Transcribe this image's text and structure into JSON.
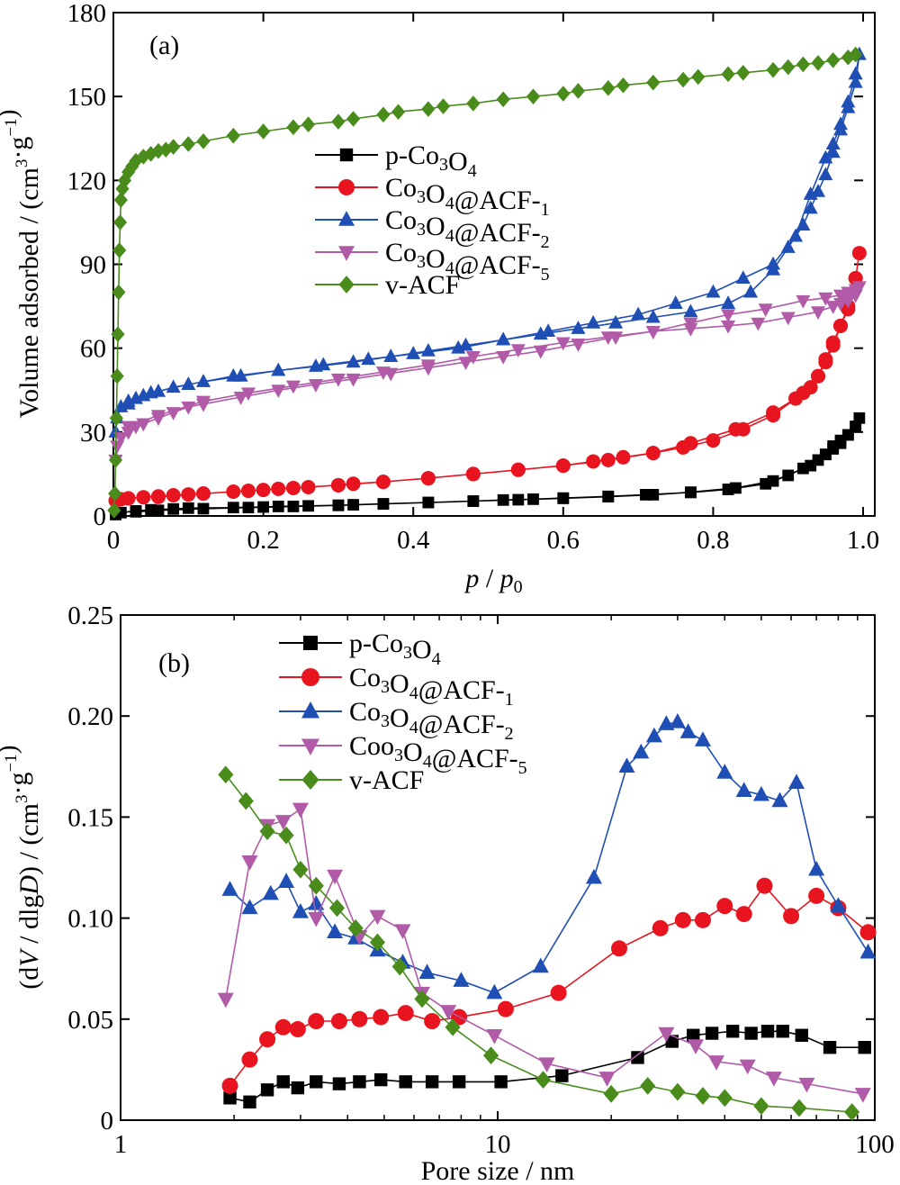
{
  "chart_data": [
    {
      "panel_label": "(a)",
      "type": "line",
      "xlabel": "p / p0",
      "xlabel_parts": [
        "p",
        " / ",
        "p",
        "0"
      ],
      "ylabel": "Volume adsorbed / (cm3·g−1)",
      "xlim": [
        0,
        1.0
      ],
      "ylim": [
        0,
        180
      ],
      "x_ticks": [
        0,
        0.2,
        0.4,
        0.6,
        0.8,
        1.0
      ],
      "x_tick_labels": [
        "0",
        "0.2",
        "0.4",
        "0.6",
        "0.8",
        "1.0"
      ],
      "y_ticks": [
        0,
        30,
        60,
        90,
        120,
        150,
        180
      ],
      "y_tick_labels": [
        "0",
        "30",
        "60",
        "90",
        "120",
        "150",
        "180"
      ],
      "legend_position": "upper-center",
      "series": [
        {
          "name": "p-Co3O4",
          "color": "#000000",
          "marker": "square",
          "x": [
            0.003,
            0.01,
            0.03,
            0.05,
            0.08,
            0.1,
            0.16,
            0.2,
            0.22,
            0.26,
            0.3,
            0.32,
            0.36,
            0.42,
            0.48,
            0.52,
            0.56,
            0.6,
            0.66,
            0.71,
            0.77,
            0.82,
            0.87,
            0.9,
            0.92,
            0.94,
            0.95,
            0.96,
            0.97,
            0.98,
            0.99,
            0.995,
            0.99,
            0.98,
            0.97,
            0.96,
            0.95,
            0.93,
            0.88,
            0.83,
            0.77,
            0.72,
            0.66,
            0.6,
            0.54,
            0.48,
            0.42,
            0.36,
            0.3,
            0.24,
            0.18,
            0.12,
            0.06,
            0.03
          ],
          "y": [
            0.5,
            1.2,
            1.8,
            2.2,
            2.5,
            2.8,
            3.0,
            3.2,
            3.4,
            3.6,
            3.8,
            4.0,
            4.3,
            4.8,
            5.3,
            5.7,
            6.0,
            6.4,
            7.0,
            7.6,
            8.4,
            9.5,
            11.5,
            14.5,
            17,
            20,
            22,
            24,
            26,
            29,
            32,
            35,
            32,
            29,
            27,
            25,
            22,
            18,
            12.5,
            10,
            8.5,
            7.6,
            6.9,
            6.3,
            5.8,
            5.3,
            4.8,
            4.3,
            3.8,
            3.4,
            3.0,
            2.6,
            2.0,
            1.5
          ]
        },
        {
          "name": "Co3O4@ACF-1",
          "color": "#e8141f",
          "marker": "circle",
          "x": [
            0.003,
            0.01,
            0.02,
            0.04,
            0.06,
            0.08,
            0.1,
            0.12,
            0.16,
            0.2,
            0.22,
            0.26,
            0.3,
            0.32,
            0.36,
            0.42,
            0.48,
            0.54,
            0.6,
            0.64,
            0.68,
            0.72,
            0.76,
            0.8,
            0.84,
            0.88,
            0.92,
            0.94,
            0.95,
            0.96,
            0.97,
            0.98,
            0.99,
            0.995,
            0.99,
            0.98,
            0.97,
            0.96,
            0.95,
            0.94,
            0.93,
            0.91,
            0.88,
            0.83,
            0.77,
            0.72,
            0.66,
            0.6,
            0.54,
            0.48,
            0.42,
            0.36,
            0.3,
            0.24,
            0.18,
            0.12,
            0.06
          ],
          "y": [
            5.5,
            6.0,
            6.3,
            6.7,
            7.0,
            7.4,
            7.7,
            8.0,
            8.7,
            9.3,
            9.7,
            10.3,
            11,
            11.5,
            12.2,
            13.5,
            15,
            16.5,
            18,
            19.5,
            21,
            22.5,
            24.5,
            27,
            31,
            36,
            44,
            50,
            56,
            62,
            68,
            74,
            85,
            94,
            85,
            75,
            68,
            61,
            55,
            50,
            46,
            42,
            37,
            31,
            26,
            22.5,
            20,
            18,
            16.5,
            15,
            13.5,
            12.2,
            11,
            10,
            9,
            8,
            6.8
          ]
        },
        {
          "name": "Co3O4@ACF-2",
          "color": "#1f4eb4",
          "marker": "triangle-up",
          "x": [
            0.003,
            0.005,
            0.01,
            0.02,
            0.03,
            0.04,
            0.06,
            0.08,
            0.1,
            0.12,
            0.17,
            0.22,
            0.27,
            0.32,
            0.37,
            0.42,
            0.47,
            0.52,
            0.57,
            0.62,
            0.67,
            0.72,
            0.77,
            0.82,
            0.85,
            0.88,
            0.9,
            0.92,
            0.93,
            0.94,
            0.95,
            0.96,
            0.97,
            0.98,
            0.99,
            0.995,
            0.99,
            0.98,
            0.97,
            0.96,
            0.95,
            0.93,
            0.91,
            0.88,
            0.84,
            0.8,
            0.75,
            0.7,
            0.64,
            0.58,
            0.52,
            0.46,
            0.4,
            0.34,
            0.28,
            0.22,
            0.16,
            0.1,
            0.05,
            0.02
          ],
          "y": [
            30,
            35,
            39,
            41,
            42,
            43,
            44.5,
            46,
            47,
            48,
            50,
            52,
            53.5,
            55,
            57,
            59,
            61,
            63,
            65,
            67,
            69,
            71,
            73,
            76,
            80,
            88,
            96,
            104,
            110,
            116,
            122,
            130,
            138,
            146,
            155,
            165,
            158,
            148,
            140,
            133,
            128,
            115,
            100,
            90,
            85,
            80,
            76,
            72,
            69,
            66,
            63,
            60,
            58,
            56,
            54,
            52,
            50,
            47,
            44,
            40
          ]
        },
        {
          "name": "Co3O4@ACF-5",
          "color": "#b05aa8",
          "marker": "triangle-down",
          "x": [
            0.003,
            0.005,
            0.01,
            0.02,
            0.03,
            0.04,
            0.06,
            0.08,
            0.1,
            0.12,
            0.17,
            0.22,
            0.27,
            0.32,
            0.37,
            0.42,
            0.47,
            0.52,
            0.57,
            0.62,
            0.67,
            0.72,
            0.77,
            0.82,
            0.87,
            0.92,
            0.95,
            0.97,
            0.98,
            0.99,
            0.995,
            0.99,
            0.98,
            0.97,
            0.96,
            0.94,
            0.9,
            0.86,
            0.82,
            0.77,
            0.72,
            0.66,
            0.6,
            0.54,
            0.48,
            0.42,
            0.36,
            0.3,
            0.24,
            0.18,
            0.12,
            0.06,
            0.02
          ],
          "y": [
            20,
            25,
            28,
            30,
            32,
            33,
            35,
            37,
            39,
            40,
            42.5,
            45,
            47,
            49,
            51,
            53,
            55,
            57,
            59,
            61.5,
            64,
            66,
            69,
            72,
            74,
            77,
            78,
            79,
            80,
            81,
            82,
            79,
            77,
            76,
            75,
            73,
            71,
            69,
            68,
            67,
            66,
            64,
            62,
            59.5,
            57,
            54,
            51.5,
            49,
            46.5,
            44,
            41,
            36,
            32
          ]
        },
        {
          "name": "v-ACF",
          "color": "#4a8c1c",
          "marker": "diamond",
          "x": [
            0.001,
            0.002,
            0.003,
            0.004,
            0.005,
            0.006,
            0.007,
            0.008,
            0.009,
            0.01,
            0.012,
            0.015,
            0.02,
            0.025,
            0.03,
            0.04,
            0.05,
            0.06,
            0.07,
            0.08,
            0.1,
            0.12,
            0.16,
            0.2,
            0.24,
            0.26,
            0.3,
            0.32,
            0.36,
            0.38,
            0.42,
            0.44,
            0.48,
            0.52,
            0.56,
            0.6,
            0.62,
            0.66,
            0.68,
            0.72,
            0.76,
            0.78,
            0.82,
            0.84,
            0.88,
            0.9,
            0.92,
            0.94,
            0.96,
            0.98,
            0.99
          ],
          "y": [
            2,
            8,
            20,
            35,
            50,
            65,
            80,
            95,
            105,
            113,
            117,
            120,
            123,
            125,
            127,
            128.5,
            129.5,
            130.5,
            131,
            132,
            133,
            134,
            136,
            137.5,
            139,
            140,
            141,
            142,
            143.5,
            144.5,
            145.5,
            146.5,
            147.5,
            149,
            150,
            151,
            152,
            153,
            154,
            155,
            156,
            157,
            158,
            158.5,
            159.5,
            160.5,
            161.5,
            162,
            163,
            164,
            165
          ]
        }
      ]
    },
    {
      "panel_label": "(b)",
      "type": "line",
      "xlabel": "Pore size / nm",
      "ylabel": "(dV / dlgD) / (cm3·g−1)",
      "x_scale": "log",
      "xlim": [
        1,
        100
      ],
      "ylim": [
        0,
        0.25
      ],
      "x_ticks": [
        1,
        10,
        100
      ],
      "x_tick_labels": [
        "1",
        "10",
        "100"
      ],
      "y_ticks": [
        0,
        0.05,
        0.1,
        0.15,
        0.2,
        0.25
      ],
      "y_tick_labels": [
        "0",
        "0.05",
        "0.10",
        "0.15",
        "0.20",
        "0.25"
      ],
      "legend_position": "upper-center",
      "series": [
        {
          "name": "p-Co3O4",
          "color": "#000000",
          "marker": "square",
          "x": [
            1.95,
            2.2,
            2.45,
            2.7,
            2.95,
            3.3,
            3.8,
            4.3,
            4.9,
            5.7,
            6.7,
            7.9,
            10.2,
            14.8,
            23.5,
            29,
            33,
            37,
            42,
            47,
            52,
            57,
            64,
            76,
            94
          ],
          "y": [
            0.011,
            0.009,
            0.015,
            0.019,
            0.016,
            0.019,
            0.018,
            0.019,
            0.02,
            0.019,
            0.019,
            0.019,
            0.019,
            0.022,
            0.031,
            0.039,
            0.042,
            0.043,
            0.044,
            0.043,
            0.044,
            0.044,
            0.042,
            0.036,
            0.036
          ]
        },
        {
          "name": "Co3O4@ACF-1",
          "color": "#e8141f",
          "marker": "circle",
          "x": [
            1.95,
            2.2,
            2.45,
            2.7,
            2.95,
            3.3,
            3.8,
            4.3,
            4.9,
            5.7,
            6.7,
            7.9,
            10.5,
            14.5,
            21,
            27,
            31,
            35,
            40,
            45,
            51,
            60,
            70,
            80,
            96
          ],
          "y": [
            0.017,
            0.03,
            0.04,
            0.046,
            0.045,
            0.049,
            0.049,
            0.05,
            0.051,
            0.053,
            0.049,
            0.051,
            0.055,
            0.063,
            0.085,
            0.095,
            0.099,
            0.099,
            0.106,
            0.102,
            0.116,
            0.101,
            0.111,
            0.105,
            0.093
          ]
        },
        {
          "name": "Co3O4@ACF-2",
          "color": "#1f4eb4",
          "marker": "triangle-up",
          "x": [
            1.95,
            2.2,
            2.5,
            2.75,
            3.0,
            3.3,
            3.7,
            4.2,
            4.8,
            5.6,
            6.5,
            8.0,
            9.8,
            13,
            18,
            22,
            24,
            26,
            28,
            30,
            32,
            35,
            40,
            45,
            50,
            56,
            62,
            70,
            80,
            96
          ],
          "y": [
            0.114,
            0.105,
            0.112,
            0.118,
            0.103,
            0.107,
            0.093,
            0.09,
            0.084,
            0.078,
            0.073,
            0.069,
            0.063,
            0.076,
            0.12,
            0.175,
            0.182,
            0.19,
            0.196,
            0.197,
            0.192,
            0.188,
            0.172,
            0.163,
            0.161,
            0.158,
            0.167,
            0.124,
            0.106,
            0.083
          ]
        },
        {
          "name": "Coo3O4@ACF-5",
          "color": "#b05aa8",
          "marker": "triangle-down",
          "x": [
            1.9,
            2.2,
            2.45,
            2.7,
            3.0,
            3.3,
            3.7,
            4.3,
            4.8,
            5.6,
            6.3,
            7.4,
            9.8,
            13.5,
            19.5,
            28,
            33.5,
            38,
            46,
            54,
            66,
            93
          ],
          "y": [
            0.06,
            0.128,
            0.146,
            0.148,
            0.154,
            0.1,
            0.121,
            0.091,
            0.101,
            0.094,
            0.063,
            0.054,
            0.042,
            0.028,
            0.021,
            0.043,
            0.037,
            0.029,
            0.027,
            0.021,
            0.018,
            0.013
          ]
        },
        {
          "name": "v-ACF",
          "color": "#4a8c1c",
          "marker": "diamond",
          "x": [
            1.9,
            2.15,
            2.45,
            2.75,
            3.0,
            3.3,
            3.75,
            4.2,
            4.8,
            5.5,
            6.3,
            7.6,
            9.6,
            13.2,
            20,
            25,
            30,
            35,
            40,
            50,
            63,
            87
          ],
          "y": [
            0.171,
            0.158,
            0.143,
            0.141,
            0.124,
            0.116,
            0.105,
            0.095,
            0.088,
            0.076,
            0.06,
            0.046,
            0.032,
            0.02,
            0.013,
            0.017,
            0.014,
            0.012,
            0.011,
            0.007,
            0.006,
            0.004
          ]
        }
      ]
    }
  ]
}
